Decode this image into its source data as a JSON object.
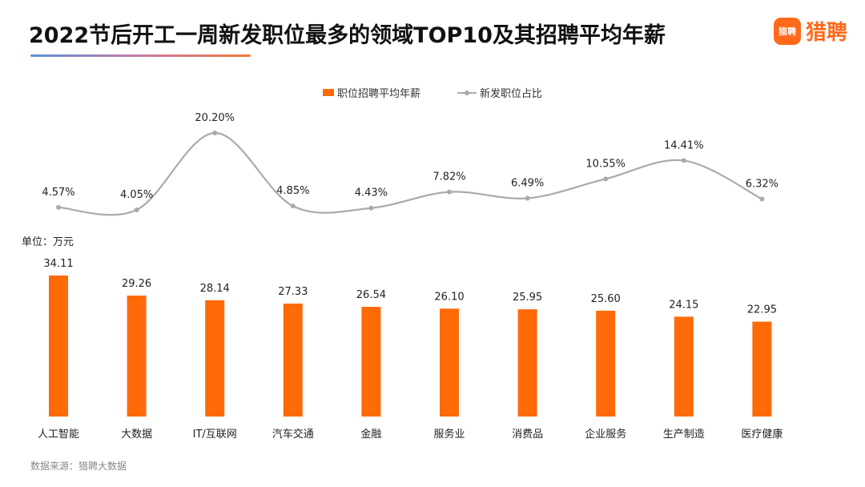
{
  "header": {
    "title": "2022节后开工一周新发职位最多的领域TOP10及其招聘平均年薪",
    "brand_badge": "猎聘",
    "brand_name": "猎聘"
  },
  "legend": {
    "bar_label": "职位招聘平均年薪",
    "line_label": "新发职位占比"
  },
  "unit_label": "单位：万元",
  "source": "数据来源：猎聘大数据",
  "colors": {
    "bar": "#ff6a08",
    "line": "#aaaaaa",
    "brand": "#ff6a1a"
  },
  "chart_data": {
    "type": "bar+line",
    "title": "2022节后开工一周新发职位最多的领域TOP10及其招聘平均年薪",
    "categories": [
      "人工智能",
      "大数据",
      "IT/互联网",
      "汽车交通",
      "金融",
      "服务业",
      "消费品",
      "企业服务",
      "生产制造",
      "医疗健康"
    ],
    "series": [
      {
        "name": "职位招聘平均年薪",
        "type": "bar",
        "unit": "万元",
        "values": [
          34.11,
          29.26,
          28.14,
          27.33,
          26.54,
          26.1,
          25.95,
          25.6,
          24.15,
          22.95
        ],
        "labels": [
          "34.11",
          "29.26",
          "28.14",
          "27.33",
          "26.54",
          "26.10",
          "25.95",
          "25.60",
          "24.15",
          "22.95"
        ]
      },
      {
        "name": "新发职位占比",
        "type": "line",
        "unit": "%",
        "values": [
          4.57,
          4.05,
          20.2,
          4.85,
          4.43,
          7.82,
          6.49,
          10.55,
          14.41,
          6.32
        ],
        "labels": [
          "4.57%",
          "4.05%",
          "20.20%",
          "4.85%",
          "4.43%",
          "7.82%",
          "6.49%",
          "10.55%",
          "14.41%",
          "6.32%"
        ]
      }
    ],
    "bar_ylim": [
      0,
      34.11
    ],
    "line_ylim": [
      4.05,
      20.2
    ],
    "grid": false,
    "legend_position": "top-center"
  }
}
